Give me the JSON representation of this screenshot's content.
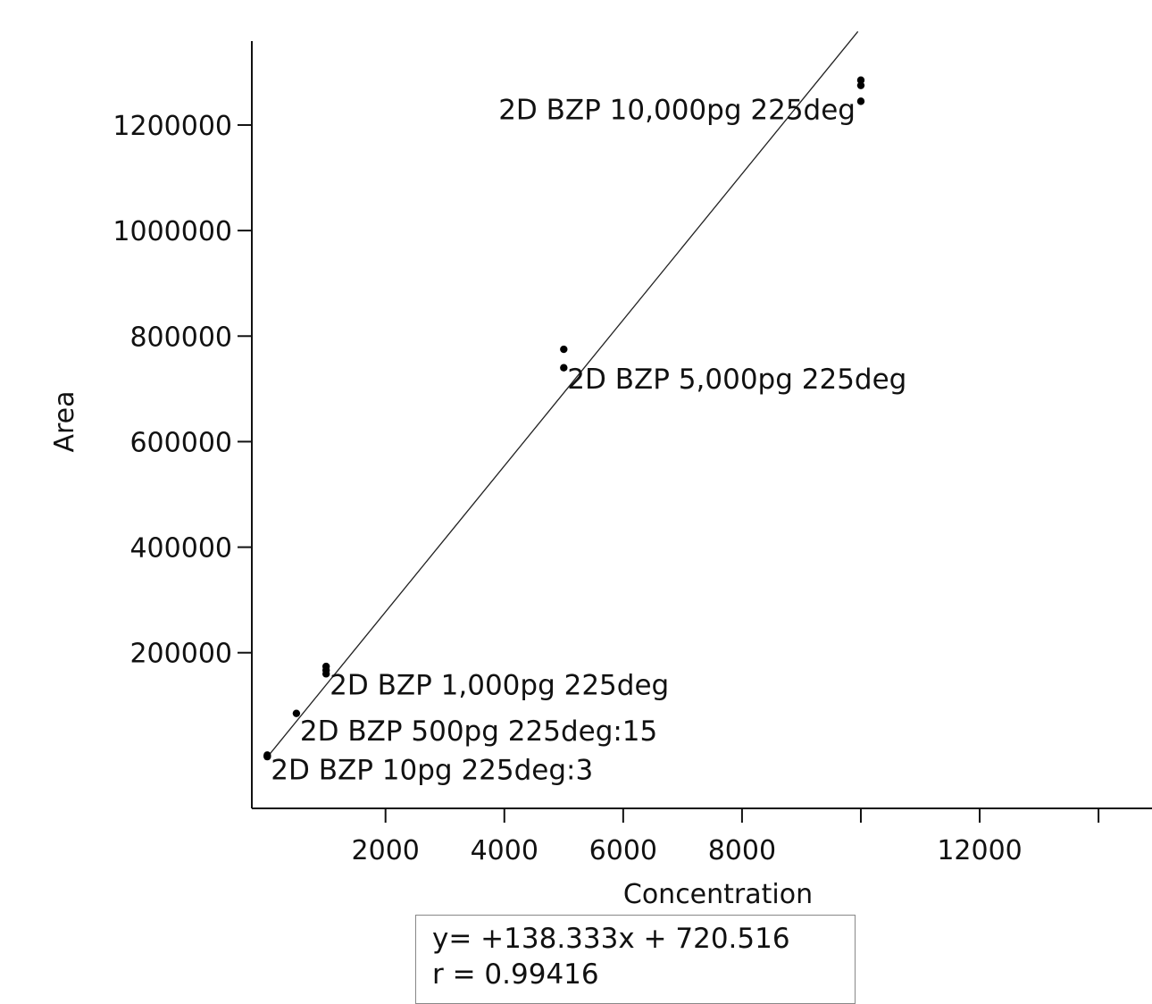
{
  "colors": {
    "banner_text": "#7ec636",
    "axis": "#111111",
    "fit_line": "#222222"
  },
  "chart_data": {
    "type": "scatter",
    "title": "",
    "xlabel": "Concentration",
    "ylabel": "Area",
    "xlim": [
      -250,
      14900
    ],
    "ylim": [
      -95000,
      1420000
    ],
    "x_ticks": [
      {
        "value": 2000,
        "label": "2000"
      },
      {
        "value": 4000,
        "label": "4000"
      },
      {
        "value": 6000,
        "label": "6000"
      },
      {
        "value": 8000,
        "label": "8000"
      },
      {
        "value": 10000,
        "label": ""
      },
      {
        "value": 12000,
        "label": "12000"
      },
      {
        "value": 14000,
        "label": ""
      }
    ],
    "y_ticks": [
      {
        "value": 200000,
        "label": "200000"
      },
      {
        "value": 400000,
        "label": "400000"
      },
      {
        "value": 600000,
        "label": "600000"
      },
      {
        "value": 800000,
        "label": "800000"
      },
      {
        "value": 1000000,
        "label": "1000000"
      },
      {
        "value": 1200000,
        "label": "1200000"
      }
    ],
    "series": [
      {
        "points": [
          {
            "x": 10,
            "y": 3000
          },
          {
            "x": 10,
            "y": 4500
          },
          {
            "x": 10,
            "y": 6000
          },
          {
            "x": 500,
            "y": 85000
          },
          {
            "x": 1000,
            "y": 160000
          },
          {
            "x": 1000,
            "y": 167000
          },
          {
            "x": 1000,
            "y": 174000
          },
          {
            "x": 5000,
            "y": 740000
          },
          {
            "x": 5000,
            "y": 775000
          },
          {
            "x": 10000,
            "y": 1245000
          },
          {
            "x": 10000,
            "y": 1275000
          },
          {
            "x": 10000,
            "y": 1285000
          }
        ]
      }
    ],
    "annotations": [
      {
        "text": "2D BZP 10,000pg 225deg",
        "x": 10000,
        "y": 1255000,
        "anchor": "end"
      },
      {
        "text": "2D BZP 5,000pg 225deg",
        "x": 5000,
        "y": 745000,
        "anchor": "start"
      },
      {
        "text": "2D BZP 1,000pg 225deg",
        "x": 1000,
        "y": 165000,
        "anchor": "start"
      },
      {
        "text": "2D BZP 500pg 225deg:15",
        "x": 500,
        "y": 78000,
        "anchor": "start"
      },
      {
        "text": "2D BZP 10pg 225deg:3",
        "x": 10,
        "y": 4000,
        "anchor": "start"
      }
    ],
    "fit": {
      "slope": 138.333,
      "intercept": 720.516,
      "x_range": [
        0,
        9950
      ],
      "equation": "y= +138.333x + 720.516",
      "r_text": "r = 0.99416"
    },
    "grid": false
  }
}
